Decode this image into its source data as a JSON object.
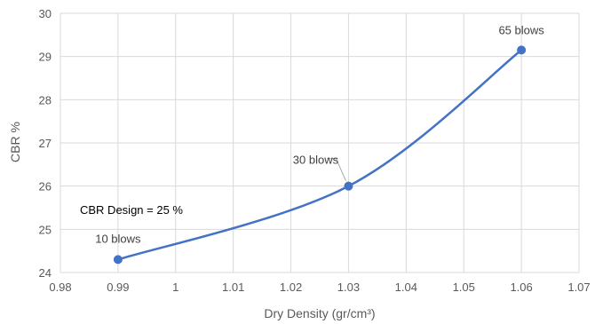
{
  "chart_data": {
    "type": "line",
    "smooth": true,
    "title": "",
    "xlabel": "Dry Density (gr/cm³)",
    "ylabel": "CBR %",
    "xlim": [
      0.98,
      1.07
    ],
    "ylim": [
      24,
      30
    ],
    "x_ticks": [
      "0.98",
      "0.99",
      "1",
      "1.01",
      "1.02",
      "1.03",
      "1.04",
      "1.05",
      "1.06",
      "1.07"
    ],
    "y_ticks": [
      "24",
      "25",
      "26",
      "27",
      "28",
      "29",
      "30"
    ],
    "grid": true,
    "legend": "none",
    "series": [
      {
        "color": "#4472c4",
        "points": [
          {
            "x": 0.99,
            "y": 24.3,
            "label": "10 blows"
          },
          {
            "x": 1.03,
            "y": 26.0,
            "label": "30 blows"
          },
          {
            "x": 1.06,
            "y": 29.15,
            "label": "65 blows"
          }
        ]
      }
    ],
    "annotations": [
      {
        "text": "CBR Design = 25 %"
      }
    ]
  }
}
